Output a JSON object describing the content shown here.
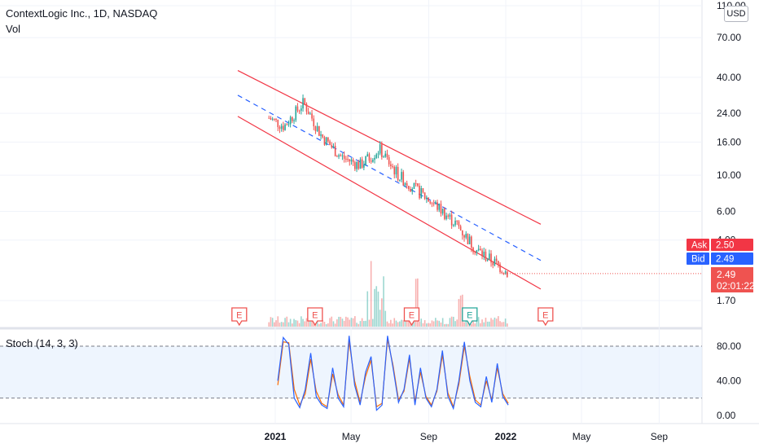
{
  "legend": {
    "symbol": "ContextLogic Inc., 1D, NASDAQ",
    "vol": "Vol"
  },
  "stoch_label": "Stoch (14, 3, 3)",
  "currency": "USD",
  "price_axis": {
    "labels": [
      "110.00",
      "70.00",
      "40.00",
      "24.00",
      "16.00",
      "10.00",
      "6.00",
      "4.00",
      "1.70"
    ]
  },
  "stoch_axis": {
    "labels": [
      "80.00",
      "40.00",
      "0.00"
    ]
  },
  "time_axis": {
    "labels": [
      "2021",
      "May",
      "Sep",
      "2022",
      "May",
      "Sep"
    ]
  },
  "quote": {
    "ask_label": "Ask",
    "ask_value": "2.50",
    "bid_label": "Bid",
    "bid_value": "2.49",
    "last_value": "2.49",
    "countdown": "02:01:22"
  },
  "earnings_marker": "E",
  "colors": {
    "up": "#26a69a",
    "down": "#ef5350",
    "channel": "#f23645",
    "mid": "#2962ff",
    "stoch_k": "#2962ff",
    "stoch_d": "#ff6d00",
    "band": "#e3effd",
    "ask": "#f23645",
    "bid": "#2962ff"
  },
  "chart_data": {
    "type": "line",
    "title": "ContextLogic Inc., 1D, NASDAQ",
    "scale": "log",
    "ylim": [
      1.4,
      110
    ],
    "x": [
      "2020-12",
      "2021-01",
      "2021-02",
      "2021-03",
      "2021-04",
      "2021-05",
      "2021-06",
      "2021-07",
      "2021-08",
      "2021-09",
      "2021-10",
      "2021-11",
      "2021-12",
      "2022-01"
    ],
    "series": [
      {
        "name": "Close",
        "values": [
          22.5,
          20.0,
          28.0,
          17.5,
          13.0,
          11.5,
          14.5,
          10.0,
          8.0,
          6.4,
          5.0,
          3.5,
          2.9,
          2.49
        ]
      }
    ],
    "channel": {
      "upper_start": 44,
      "upper_end": 5.0,
      "mid_start": 31,
      "mid_end": 3.0,
      "lower_start": 23,
      "lower_end": 2.0
    },
    "stochastic": {
      "name": "Stoch (14, 3, 3)",
      "ylim": [
        -5,
        100
      ],
      "levels": [
        80,
        20
      ],
      "k": [
        40,
        90,
        82,
        20,
        9,
        30,
        72,
        22,
        12,
        8,
        55,
        20,
        10,
        92,
        35,
        12,
        50,
        68,
        6,
        12,
        92,
        55,
        15,
        30,
        70,
        12,
        55,
        20,
        10,
        30,
        75,
        22,
        8,
        40,
        85,
        40,
        15,
        10,
        45,
        15,
        60,
        22,
        12
      ],
      "d": [
        35,
        85,
        84,
        30,
        12,
        25,
        65,
        28,
        14,
        10,
        48,
        24,
        12,
        86,
        40,
        15,
        45,
        64,
        10,
        14,
        88,
        58,
        18,
        28,
        66,
        16,
        50,
        22,
        12,
        28,
        70,
        26,
        10,
        36,
        80,
        45,
        18,
        12,
        40,
        18,
        55,
        25,
        14
      ]
    },
    "earnings": [
      "2020-11",
      "2021-03",
      "2021-08",
      "2021-11",
      "2022-03"
    ]
  }
}
